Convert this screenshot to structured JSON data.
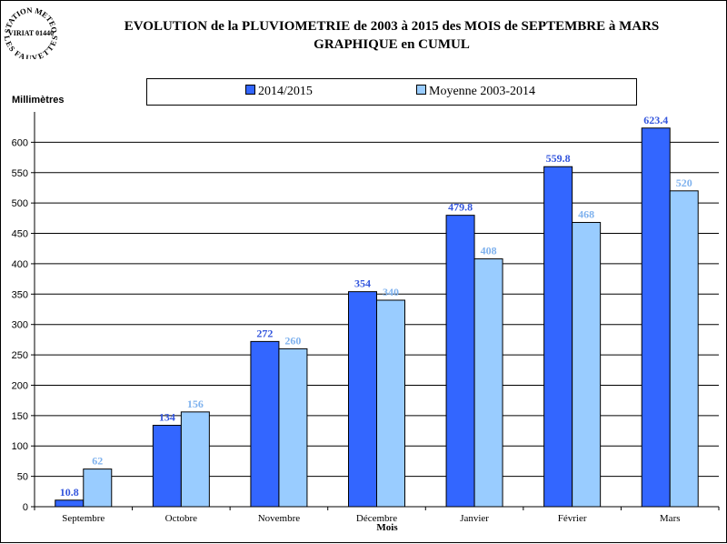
{
  "stamp": {
    "line1": "STATION METEO",
    "line2": "VIRIAT 01440",
    "line3": "LES FAUVETTES"
  },
  "header": {
    "title_line1": "EVOLUTION de la PLUVIOMETRIE de 2003 à 2015 des MOIS de SEPTEMBRE à MARS",
    "title_line2": "GRAPHIQUE en CUMUL"
  },
  "colors": {
    "series_2014_2015": "#3366ff",
    "series_moyenne": "#99ccff",
    "label_2014_2015": "#3355dd",
    "label_moyenne": "#7fb2ee"
  },
  "chart_data": {
    "type": "bar",
    "title": "EVOLUTION de la PLUVIOMETRIE de 2003 à 2015 des MOIS de SEPTEMBRE à MARS",
    "subtitle": "GRAPHIQUE en CUMUL",
    "ylabel": "Millimètres",
    "xlabel": "Mois",
    "ylim": [
      0,
      650
    ],
    "yticks": [
      0,
      50,
      100,
      150,
      200,
      250,
      300,
      350,
      400,
      450,
      500,
      550,
      600
    ],
    "grid": true,
    "legend_position": "top",
    "categories": [
      "Septembre",
      "Octobre",
      "Novembre",
      "Décembre",
      "Janvier",
      "Février",
      "Mars"
    ],
    "series": [
      {
        "name": "2014/2015",
        "values": [
          10.8,
          134,
          272,
          354,
          479.8,
          559.8,
          623.4
        ]
      },
      {
        "name": "Moyenne 2003-2014",
        "values": [
          62,
          156,
          260,
          340,
          408,
          468,
          520
        ]
      }
    ]
  }
}
